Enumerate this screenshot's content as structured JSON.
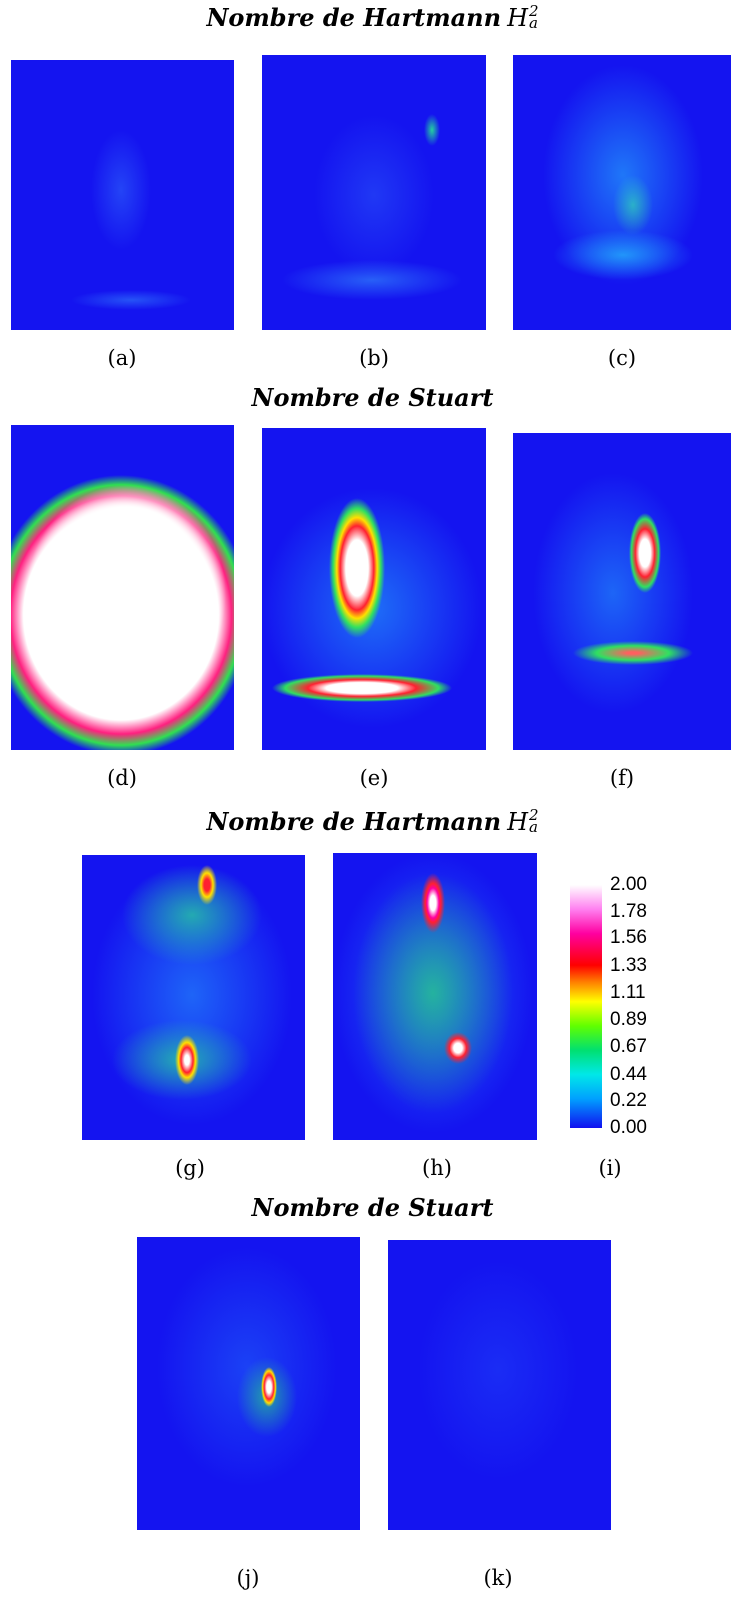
{
  "sections": [
    {
      "title": "Nombre de Hartmann",
      "symbol": "H",
      "superscript": "2",
      "subscript": "a"
    },
    {
      "title": "Nombre de Stuart"
    },
    {
      "title": "Nombre de Hartmann",
      "symbol": "H",
      "superscript": "2",
      "subscript": "a"
    },
    {
      "title": "Nombre de Stuart"
    }
  ],
  "panels": [
    "(a)",
    "(b)",
    "(c)",
    "(d)",
    "(e)",
    "(f)",
    "(g)",
    "(h)",
    "(i)",
    "(j)",
    "(k)"
  ],
  "colorbar": {
    "range": [
      0,
      2
    ],
    "ticks": [
      {
        "value": 2,
        "label": "2.00"
      },
      1.78,
      1.56,
      1.33,
      1.11,
      0.89,
      0.67,
      0.44,
      0.22,
      {
        "value": 0,
        "label": "0.00"
      }
    ]
  }
}
